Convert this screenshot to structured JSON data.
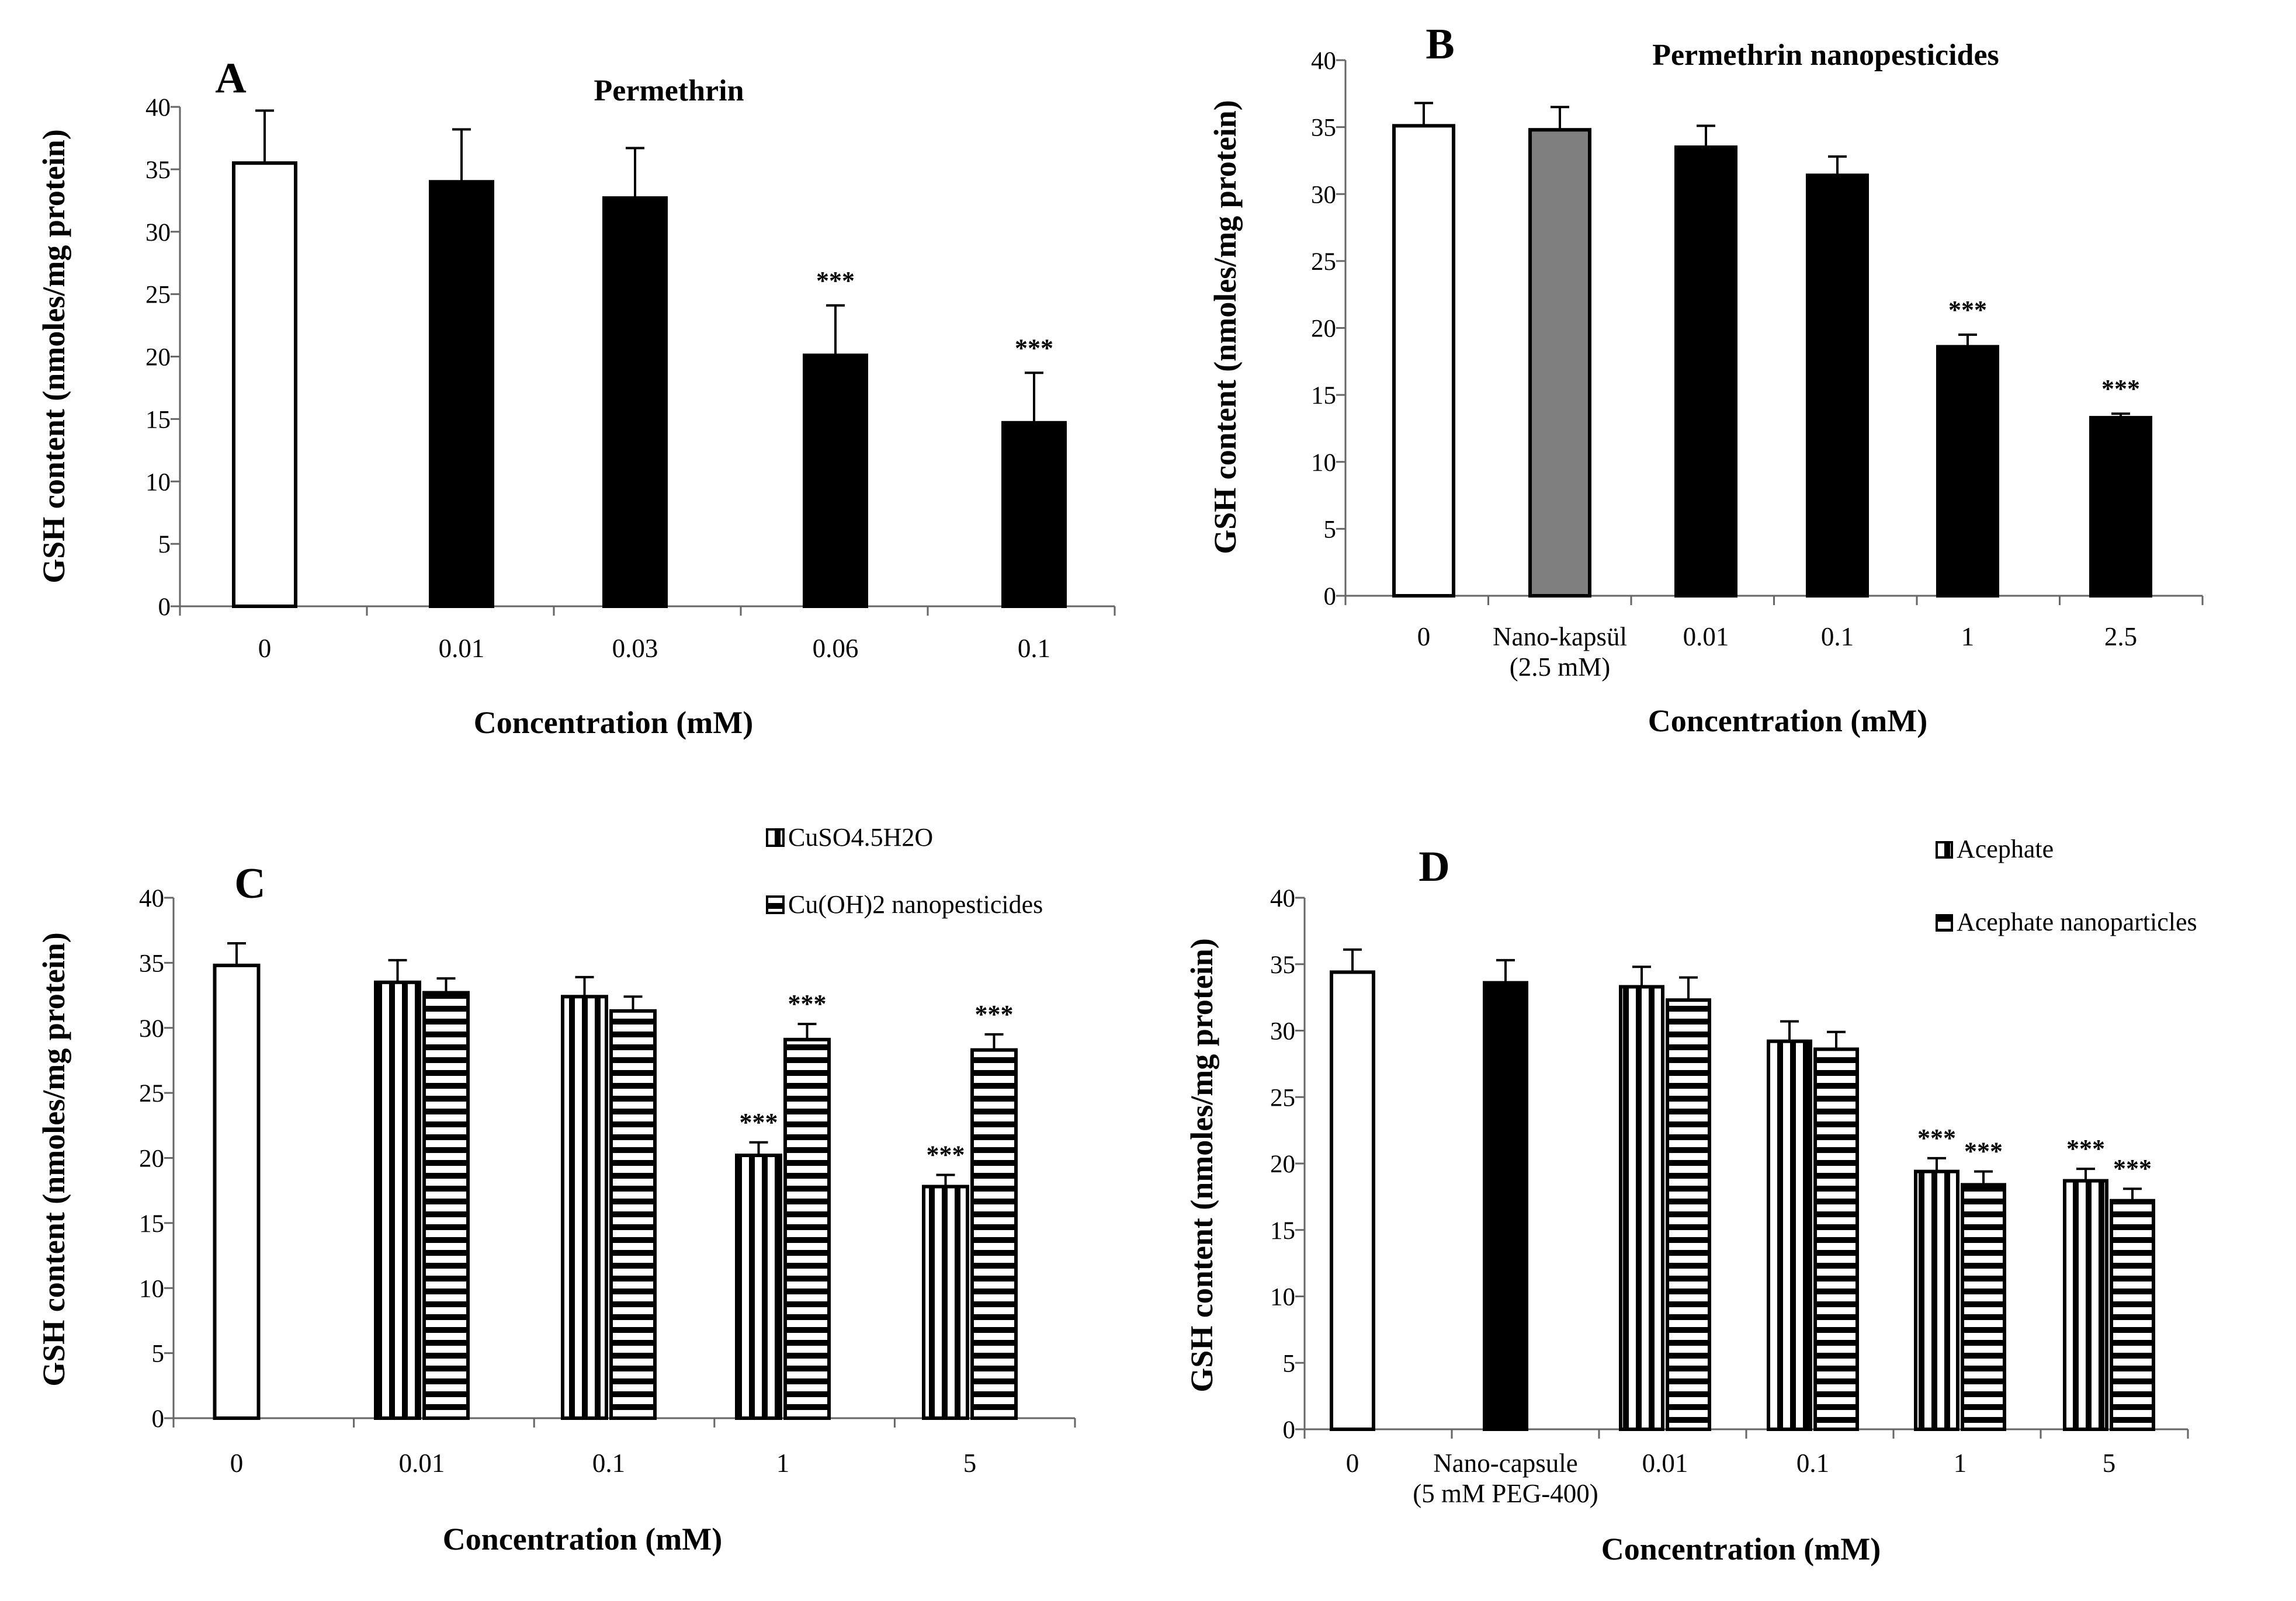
{
  "charts": [
    {
      "type": "bar",
      "panel": "A",
      "title": "Permethrin",
      "xlabel": "Concentration (mM)",
      "ylabel": "GSH content (nmoles/mg protein)",
      "ylim": [
        0,
        40
      ],
      "yticks": [
        "0",
        "5",
        "10",
        "15",
        "20",
        "25",
        "30",
        "35",
        "40"
      ],
      "legend": [],
      "categories": [
        {
          "label": [
            "0"
          ],
          "bars": [
            {
              "value": 35.5,
              "err": 4.2,
              "style": "white"
            }
          ],
          "sig": ""
        },
        {
          "label": [
            "0.01"
          ],
          "bars": [
            {
              "value": 34.0,
              "err": 4.2,
              "style": "black"
            }
          ],
          "sig": ""
        },
        {
          "label": [
            "0.03"
          ],
          "bars": [
            {
              "value": 32.7,
              "err": 4.0,
              "style": "black"
            }
          ],
          "sig": ""
        },
        {
          "label": [
            "0.06"
          ],
          "bars": [
            {
              "value": 20.1,
              "err": 4.0,
              "style": "black"
            }
          ],
          "sig": "***"
        },
        {
          "label": [
            "0.1"
          ],
          "bars": [
            {
              "value": 14.7,
              "err": 4.0,
              "style": "black"
            }
          ],
          "sig": "***"
        }
      ]
    },
    {
      "type": "bar",
      "panel": "B",
      "title": "Permethrin nanopesticides",
      "xlabel": "Concentration (mM)",
      "ylabel": "GSH content (nmoles/mg protein)",
      "ylim": [
        0,
        40
      ],
      "yticks": [
        "0",
        "5",
        "10",
        "15",
        "20",
        "25",
        "30",
        "35",
        "40"
      ],
      "legend": [],
      "categories": [
        {
          "label": [
            "0"
          ],
          "bars": [
            {
              "value": 35.1,
              "err": 1.7,
              "style": "white"
            }
          ],
          "sig": ""
        },
        {
          "label": [
            "Nano-kapsül",
            "(2.5 mM)"
          ],
          "bars": [
            {
              "value": 34.8,
              "err": 1.7,
              "style": "gray"
            }
          ],
          "sig": ""
        },
        {
          "label": [
            "0.01"
          ],
          "bars": [
            {
              "value": 33.5,
              "err": 1.6,
              "style": "black"
            }
          ],
          "sig": ""
        },
        {
          "label": [
            "0.1"
          ],
          "bars": [
            {
              "value": 31.4,
              "err": 1.4,
              "style": "black"
            }
          ],
          "sig": ""
        },
        {
          "label": [
            "1"
          ],
          "bars": [
            {
              "value": 18.6,
              "err": 0.9,
              "style": "black"
            }
          ],
          "sig": "***"
        },
        {
          "label": [
            "2.5"
          ],
          "bars": [
            {
              "value": 13.3,
              "err": 0.3,
              "style": "black"
            }
          ],
          "sig": "***"
        }
      ]
    },
    {
      "type": "bar",
      "panel": "C",
      "title": "",
      "xlabel": "Concentration (mM)",
      "ylabel": "GSH content (nmoles/mg protein)",
      "ylim": [
        0,
        40
      ],
      "yticks": [
        "0",
        "5",
        "10",
        "15",
        "20",
        "25",
        "30",
        "35",
        "40"
      ],
      "legend": [
        {
          "label": "CuSO4.5H2O",
          "style": "vstripe"
        },
        {
          "label": "Cu(OH)2 nanopesticides",
          "style": "hstripe"
        }
      ],
      "categories": [
        {
          "label": [
            "0"
          ],
          "bars": [
            {
              "value": 34.8,
              "err": 1.7,
              "style": "white"
            }
          ],
          "sig": ""
        },
        {
          "label": [
            "0.01"
          ],
          "bars": [
            {
              "value": 33.5,
              "err": 1.7,
              "style": "vstripe"
            },
            {
              "value": 32.7,
              "err": 1.1,
              "style": "hstripe"
            }
          ],
          "sig": ""
        },
        {
          "label": [
            "0.1"
          ],
          "bars": [
            {
              "value": 32.4,
              "err": 1.5,
              "style": "vstripe"
            },
            {
              "value": 31.3,
              "err": 1.1,
              "style": "hstripe"
            }
          ],
          "sig": ""
        },
        {
          "label": [
            "1"
          ],
          "bars": [
            {
              "value": 20.2,
              "err": 1.0,
              "style": "vstripe"
            },
            {
              "value": 29.1,
              "err": 1.2,
              "style": "hstripe"
            }
          ],
          "sig": "***"
        },
        {
          "label": [
            "5"
          ],
          "bars": [
            {
              "value": 17.8,
              "err": 0.9,
              "style": "vstripe"
            },
            {
              "value": 28.3,
              "err": 1.2,
              "style": "hstripe"
            }
          ],
          "sig": "***"
        }
      ]
    },
    {
      "type": "bar",
      "panel": "D",
      "title": "",
      "xlabel": "Concentration (mM)",
      "ylabel": "GSH content (nmoles/mg protein)",
      "ylim": [
        0,
        40
      ],
      "yticks": [
        "0",
        "5",
        "10",
        "15",
        "20",
        "25",
        "30",
        "35",
        "40"
      ],
      "legend": [
        {
          "label": "Acephate",
          "style": "vstripe"
        },
        {
          "label": "Acephate nanoparticles",
          "style": "hstripe"
        }
      ],
      "categories": [
        {
          "label": [
            "0"
          ],
          "bars": [
            {
              "value": 34.4,
              "err": 1.7,
              "style": "white"
            }
          ],
          "sig": ""
        },
        {
          "label": [
            "Nano-capsule",
            "(5 mM PEG-400)"
          ],
          "bars": [
            {
              "value": 33.6,
              "err": 1.7,
              "style": "black"
            }
          ],
          "sig": ""
        },
        {
          "label": [
            "0.01"
          ],
          "bars": [
            {
              "value": 33.3,
              "err": 1.5,
              "style": "vstripe"
            },
            {
              "value": 32.3,
              "err": 1.7,
              "style": "hstripe"
            }
          ],
          "sig": ""
        },
        {
          "label": [
            "0.1"
          ],
          "bars": [
            {
              "value": 29.2,
              "err": 1.5,
              "style": "vstripe"
            },
            {
              "value": 28.6,
              "err": 1.3,
              "style": "hstripe"
            }
          ],
          "sig": ""
        },
        {
          "label": [
            "1"
          ],
          "bars": [
            {
              "value": 19.4,
              "err": 1.0,
              "style": "vstripe"
            },
            {
              "value": 18.4,
              "err": 1.0,
              "style": "hstripe"
            }
          ],
          "sig": "***"
        },
        {
          "label": [
            "5"
          ],
          "bars": [
            {
              "value": 18.7,
              "err": 0.9,
              "style": "vstripe"
            },
            {
              "value": 17.2,
              "err": 0.9,
              "style": "hstripe"
            }
          ],
          "sig": "***"
        }
      ]
    }
  ]
}
